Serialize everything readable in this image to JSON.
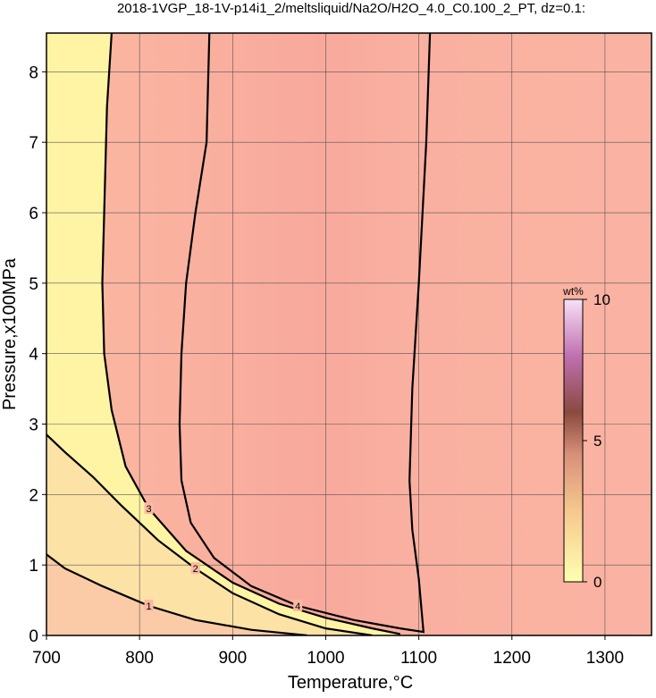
{
  "chart_data": {
    "type": "contour",
    "title": "2018-1VGP_18-1V-p14i1_2/meltsliquid/Na2O/H2O_4.0_C0.100_2_PT, dz=0.1:",
    "x_label": "Temperature,°C",
    "y_label": "Pressure,x100MPa",
    "xlim": [
      700,
      1350
    ],
    "ylim": [
      0,
      8.55
    ],
    "xticks": [
      700,
      800,
      900,
      1000,
      1100,
      1200,
      1300
    ],
    "yticks": [
      0,
      1,
      2,
      3,
      4,
      5,
      6,
      7,
      8
    ],
    "grid": true,
    "contours": [
      {
        "level": 1,
        "x": [
          700,
          720,
          760,
          810,
          860,
          920,
          980
        ],
        "y": [
          1.15,
          0.95,
          0.7,
          0.42,
          0.22,
          0.08,
          0.0
        ]
      },
      {
        "level": 2,
        "x": [
          700,
          720,
          750,
          780,
          820,
          860,
          900,
          950,
          1000,
          1050
        ],
        "y": [
          2.85,
          2.6,
          2.25,
          1.85,
          1.35,
          0.95,
          0.6,
          0.3,
          0.1,
          0.0
        ]
      },
      {
        "level": 3,
        "x": [
          770,
          765,
          762,
          760,
          762,
          770,
          785,
          810,
          850,
          900,
          950,
          1000,
          1050,
          1080
        ],
        "y": [
          8.55,
          7.5,
          6,
          5,
          4,
          3.2,
          2.4,
          1.8,
          1.2,
          0.75,
          0.45,
          0.25,
          0.1,
          0.02
        ]
      },
      {
        "level": 4,
        "x": [
          875,
          872,
          860,
          850,
          845,
          843,
          845,
          855,
          880,
          920,
          970,
          1030,
          1080,
          1105,
          1100,
          1093,
          1090,
          1093,
          1100,
          1108,
          1112
        ],
        "y": [
          8.55,
          7,
          6,
          5,
          4,
          3,
          2.2,
          1.6,
          1.1,
          0.7,
          0.42,
          0.22,
          0.1,
          0.05,
          0.8,
          1.5,
          2.2,
          3.5,
          5,
          7,
          8.55
        ]
      }
    ],
    "colorbar": {
      "label": "wt%",
      "lim": [
        0,
        10
      ],
      "ticks": [
        0,
        5,
        10
      ]
    }
  }
}
